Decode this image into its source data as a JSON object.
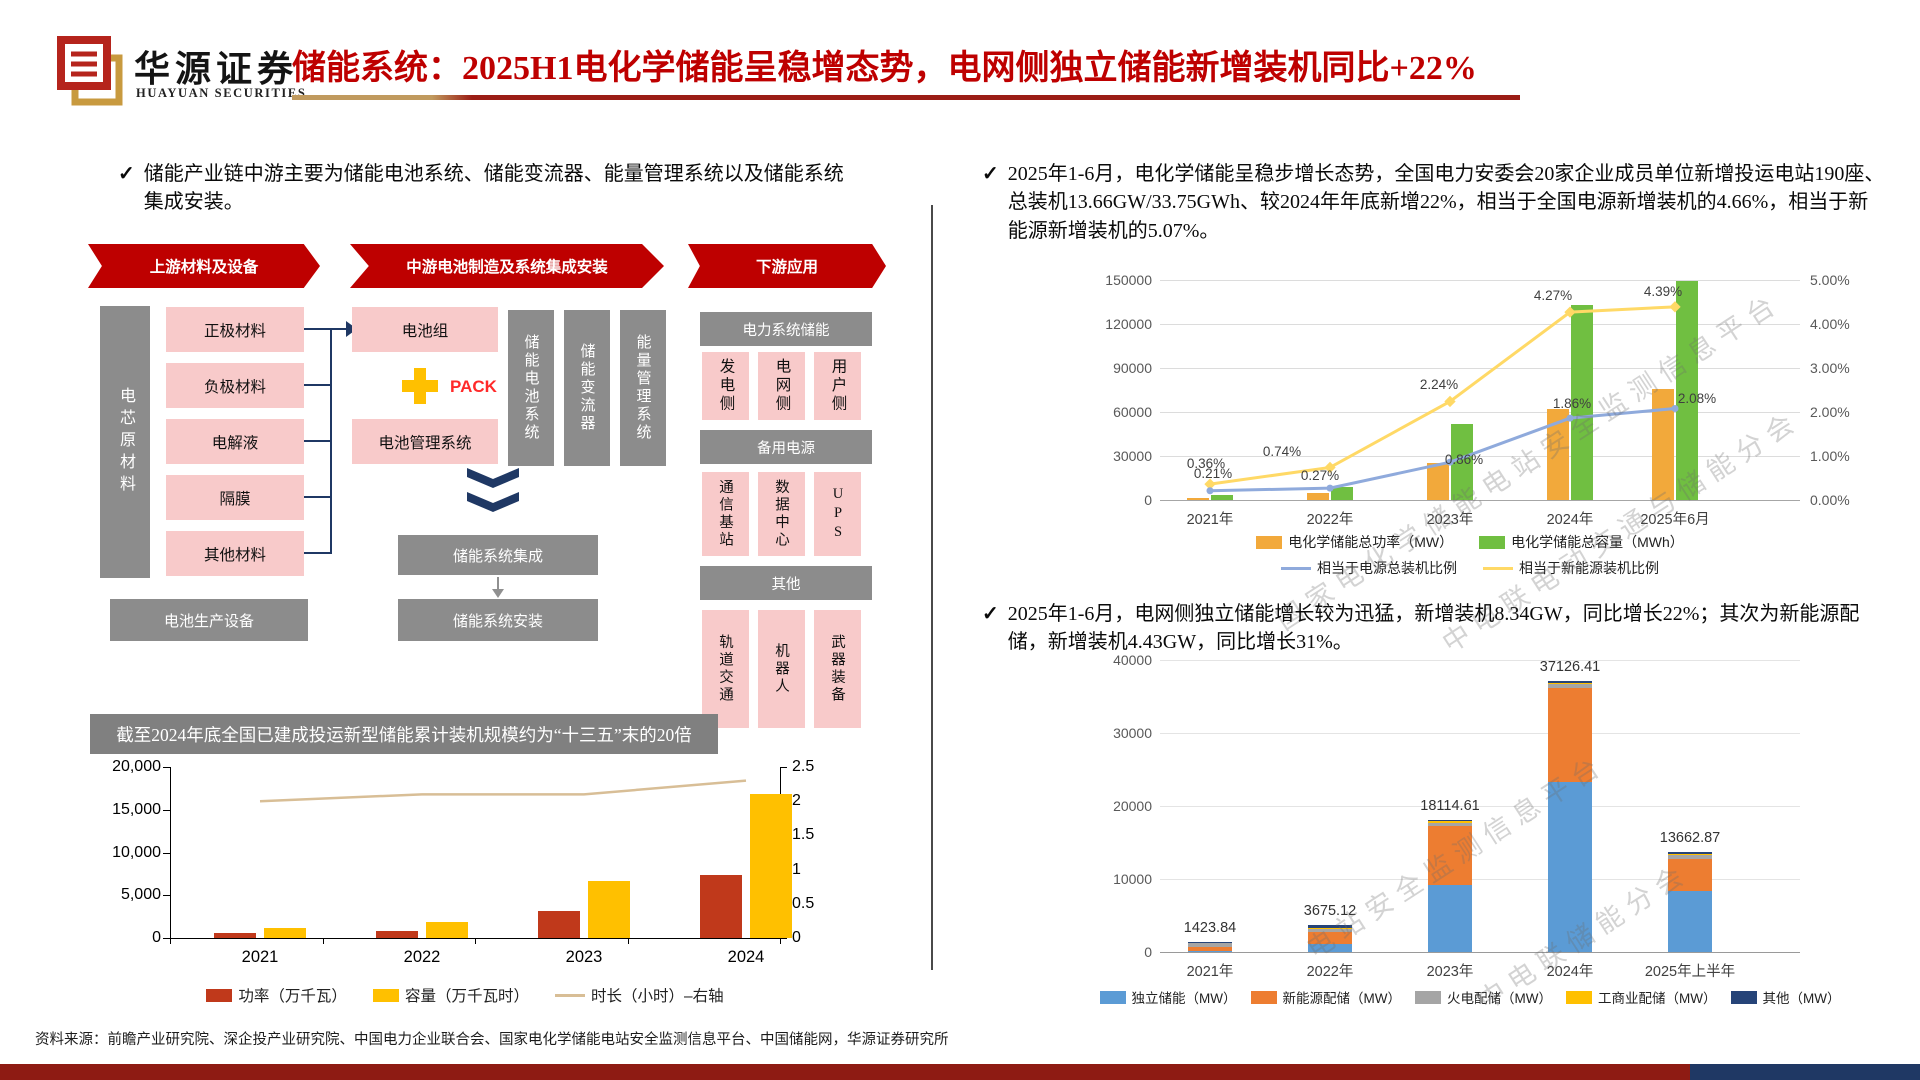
{
  "header": {
    "logo_cn": "华源证券",
    "logo_en": "HUAYUAN SECURITIES",
    "title": "储能系统：2025H1电化学储能呈稳增态势，电网侧独立储能新增装机同比+22%"
  },
  "left": {
    "bullet": "储能产业链中游主要为储能电池系统、储能变流器、能量管理系统以及储能系统集成安装。",
    "diagram": {
      "arrow_upstream": "上游材料及设备",
      "arrow_midstream": "中游电池制造及系统集成安装",
      "arrow_downstream": "下游应用",
      "cell_materials": "电芯原材料",
      "materials": [
        "正极材料",
        "负极材料",
        "电解液",
        "隔膜",
        "其他材料"
      ],
      "battery_equipment": "电池生产设备",
      "battery_pack": "电池组",
      "pack": "PACK",
      "bms": "电池管理系统",
      "midstream_systems": [
        "储能电池系统",
        "储能变流器",
        "能量管理系统"
      ],
      "integration": "储能系统集成",
      "installation": "储能系统安装",
      "downstream_groups": [
        {
          "header": "电力系统储能",
          "items": [
            "发电侧",
            "电网侧",
            "用户侧"
          ]
        },
        {
          "header": "备用电源",
          "items": [
            "通信基站",
            "数据中心",
            "UPS"
          ]
        },
        {
          "header": "其他",
          "items": [
            "轨道交通",
            "机器人",
            "武器装备"
          ]
        }
      ]
    },
    "chart_banner": "截至2024年底全国已建成投运新型储能累计装机规模约为“十三五”末的20倍"
  },
  "right": {
    "bullet1": "2025年1-6月，电化学储能呈稳步增长态势，全国电力安委会20家企业成员单位新增投运电站190座、总装机13.66GW/33.75GWh、较2024年年底新增22%，相当于全国电源新增装机的4.66%，相当于新能源新增装机的5.07%。",
    "bullet2": "2025年1-6月，电网侧独立储能增长较为迅猛，新增装机8.34GW，同比增长22%；其次为新能源配储，新增装机4.43GW，同比增长31%。"
  },
  "watermark": {
    "top1": "国家电化学储能电站安全监测信息平台",
    "top2": "中电联电动交通与储能分会",
    "bottom1": "电站安全监测信息平台",
    "bottom2": "中电联储能分会"
  },
  "source": "资料来源：前瞻产业研究院、深企投产业研究院、中国电力企业联合会、国家电化学储能电站安全监测信息平台、中国储能网，华源证券研究所",
  "chart_data": [
    {
      "id": "cumulative_new_storage",
      "type": "bar",
      "title": "截至2024年底全国已建成投运新型储能累计装机规模约为“十三五”末的20倍",
      "categories": [
        "2021",
        "2022",
        "2023",
        "2024"
      ],
      "series": [
        {
          "name": "功率（万千瓦）",
          "kind": "bar",
          "color": "#C0391B",
          "values": [
            576,
            870,
            3139,
            7376
          ]
        },
        {
          "name": "容量（万千瓦时）",
          "kind": "bar",
          "color": "#FFC000",
          "values": [
            1150,
            1910,
            6687,
            16800
          ]
        },
        {
          "name": "时长（小时）–右轴",
          "kind": "line",
          "axis": "right",
          "color": "#D8BE96",
          "values": [
            2.0,
            2.1,
            2.1,
            2.3
          ]
        }
      ],
      "ylim_left": [
        0,
        20000
      ],
      "yticks_left": [
        "20,000",
        "15,000",
        "10,000",
        "5,000",
        "0"
      ],
      "ylim_right": [
        0,
        2.5
      ],
      "yticks_right": [
        "2.5",
        "2",
        "1.5",
        "1",
        "0.5",
        "0"
      ],
      "legend_position": "bottom"
    },
    {
      "id": "electrochemical_storage",
      "type": "bar",
      "categories": [
        "2021年",
        "2022年",
        "2023年",
        "2024年",
        "2025年6月"
      ],
      "series": [
        {
          "name": "电化学储能总功率（MW）",
          "kind": "bar",
          "color": "#F2A93B",
          "values": [
            1700,
            5100,
            25000,
            62000,
            75500
          ]
        },
        {
          "name": "电化学储能总容量（MWh）",
          "kind": "bar",
          "color": "#70BF41",
          "values": [
            3300,
            9000,
            52000,
            133000,
            149000
          ]
        },
        {
          "name": "相当于电源总装机比例",
          "kind": "line",
          "axis": "right",
          "color": "#8FAADC",
          "values": [
            0.21,
            0.27,
            0.86,
            1.86,
            2.08
          ],
          "labels": [
            "0.21%",
            "0.27%",
            "0.86%",
            "1.86%",
            "2.08%"
          ]
        },
        {
          "name": "相当于新能源装机比例",
          "kind": "line",
          "axis": "right",
          "color": "#FFD966",
          "values": [
            0.36,
            0.74,
            2.24,
            4.27,
            4.39
          ],
          "labels": [
            "0.36%",
            "0.74%",
            "2.24%",
            "4.27%",
            "4.39%"
          ]
        }
      ],
      "ylim_left": [
        0,
        150000
      ],
      "yticks_left": [
        "150000",
        "120000",
        "90000",
        "60000",
        "30000",
        "0"
      ],
      "ylim_right": [
        0,
        5
      ],
      "yticks_right": [
        "5.00%",
        "4.00%",
        "3.00%",
        "2.00%",
        "1.00%",
        "0.00%"
      ],
      "grid": true,
      "legend_position": "bottom"
    },
    {
      "id": "grid_side_storage",
      "type": "bar",
      "stacked": true,
      "categories": [
        "2021年",
        "2022年",
        "2023年",
        "2024年",
        "2025年上半年"
      ],
      "totals": [
        1423.84,
        3675.12,
        18114.61,
        37126.41,
        13662.87
      ],
      "series": [
        {
          "name": "独立储能（MW）",
          "color": "#5B9BD5",
          "values": [
            150,
            1100,
            9200,
            23300,
            8340
          ]
        },
        {
          "name": "新能源配储（MW）",
          "color": "#ED7D31",
          "values": [
            600,
            1650,
            8100,
            12900,
            4430
          ]
        },
        {
          "name": "火电配储（MW）",
          "color": "#A5A5A5",
          "values": [
            550,
            400,
            400,
            450,
            450
          ]
        },
        {
          "name": "工商业配储（MW）",
          "color": "#FFC000",
          "values": [
            70,
            200,
            250,
            250,
            250
          ]
        },
        {
          "name": "其他（MW）",
          "color": "#264478",
          "values": [
            53.84,
            325.12,
            164.61,
            226.41,
            192.87
          ]
        }
      ],
      "ylim": [
        0,
        40000
      ],
      "yticks": [
        "40000",
        "30000",
        "20000",
        "10000",
        "0"
      ],
      "grid": true,
      "legend_position": "bottom"
    }
  ]
}
